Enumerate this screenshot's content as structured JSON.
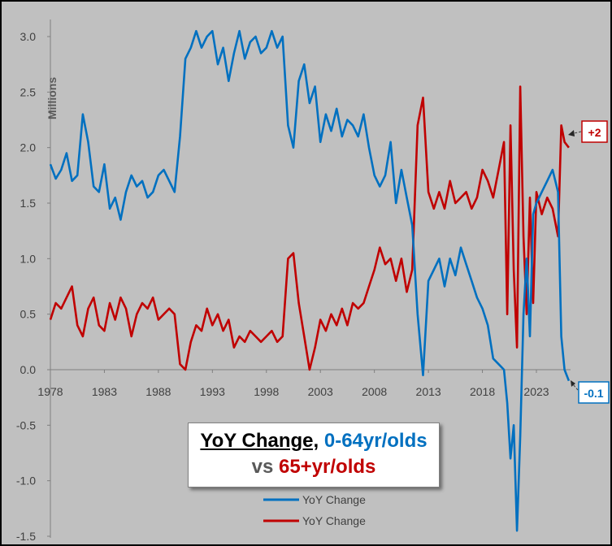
{
  "chart_data": {
    "type": "line",
    "title_parts": {
      "line1_a": "YoY Change,",
      "line1_b": " 0-64yr/olds",
      "line2_a": "vs ",
      "line2_b": "65+yr/olds"
    },
    "ylabel": "Millions",
    "ylim": [
      -1.5,
      3.2
    ],
    "xlim": [
      1978,
      2026.5
    ],
    "yticks": [
      "-1.5",
      "-1.0",
      "-0.5",
      "0.0",
      "0.5",
      "1.0",
      "1.5",
      "2.0",
      "2.5",
      "3.0"
    ],
    "ytick_values": [
      -1.5,
      -1.0,
      -0.5,
      0.0,
      0.5,
      1.0,
      1.5,
      2.0,
      2.5,
      3.0
    ],
    "xticks": [
      "1978",
      "1983",
      "1988",
      "1993",
      "1998",
      "2003",
      "2008",
      "2013",
      "2018",
      "2023"
    ],
    "xtick_values": [
      1978,
      1983,
      1988,
      1993,
      1998,
      2003,
      2008,
      2013,
      2018,
      2023
    ],
    "grid": false,
    "legend_position": "bottom-center",
    "series": [
      {
        "name": "YoY Change",
        "color": "#0070c0",
        "x": [
          1978.0,
          1978.5,
          1979.0,
          1979.5,
          1980.0,
          1980.5,
          1981.0,
          1981.5,
          1982.0,
          1982.5,
          1983.0,
          1983.5,
          1984.0,
          1984.5,
          1985.0,
          1985.5,
          1986.0,
          1986.5,
          1987.0,
          1987.5,
          1988.0,
          1988.5,
          1989.0,
          1989.5,
          1990.0,
          1990.5,
          1991.0,
          1991.5,
          1992.0,
          1992.5,
          1993.0,
          1993.5,
          1994.0,
          1994.5,
          1995.0,
          1995.5,
          1996.0,
          1996.5,
          1997.0,
          1997.5,
          1998.0,
          1998.5,
          1999.0,
          1999.5,
          2000.0,
          2000.5,
          2001.0,
          2001.5,
          2002.0,
          2002.5,
          2003.0,
          2003.5,
          2004.0,
          2004.5,
          2005.0,
          2005.5,
          2006.0,
          2006.5,
          2007.0,
          2007.5,
          2008.0,
          2008.5,
          2009.0,
          2009.5,
          2010.0,
          2010.5,
          2011.0,
          2011.5,
          2012.0,
          2012.5,
          2013.0,
          2013.5,
          2014.0,
          2014.5,
          2015.0,
          2015.5,
          2016.0,
          2016.5,
          2017.0,
          2017.5,
          2018.0,
          2018.5,
          2019.0,
          2019.5,
          2020.0,
          2020.3,
          2020.6,
          2020.9,
          2021.2,
          2021.5,
          2021.8,
          2022.1,
          2022.4,
          2022.7,
          2023.0,
          2023.5,
          2024.0,
          2024.5,
          2025.0,
          2025.3,
          2025.6,
          2026.0
        ],
        "values": [
          1.85,
          1.72,
          1.8,
          1.95,
          1.7,
          1.75,
          2.3,
          2.05,
          1.65,
          1.6,
          1.85,
          1.45,
          1.55,
          1.35,
          1.6,
          1.75,
          1.65,
          1.7,
          1.55,
          1.6,
          1.75,
          1.8,
          1.7,
          1.6,
          2.1,
          2.8,
          2.9,
          3.05,
          2.9,
          3.0,
          3.05,
          2.75,
          2.9,
          2.6,
          2.85,
          3.05,
          2.8,
          2.95,
          3.0,
          2.85,
          2.9,
          3.05,
          2.9,
          3.0,
          2.2,
          2.0,
          2.6,
          2.75,
          2.4,
          2.55,
          2.05,
          2.3,
          2.15,
          2.35,
          2.1,
          2.25,
          2.2,
          2.1,
          2.3,
          2.0,
          1.75,
          1.65,
          1.75,
          2.05,
          1.5,
          1.8,
          1.55,
          1.3,
          0.5,
          -0.05,
          0.8,
          0.9,
          1.0,
          0.75,
          1.0,
          0.85,
          1.1,
          0.95,
          0.8,
          0.65,
          0.55,
          0.4,
          0.1,
          0.05,
          0.0,
          -0.3,
          -0.8,
          -0.5,
          -1.45,
          -0.6,
          0.5,
          1.0,
          0.3,
          1.4,
          1.5,
          1.6,
          1.7,
          1.8,
          1.6,
          0.3,
          0.0,
          -0.1
        ]
      },
      {
        "name": "YoY Change",
        "color": "#c00000",
        "x": [
          1978.0,
          1978.5,
          1979.0,
          1979.5,
          1980.0,
          1980.5,
          1981.0,
          1981.5,
          1982.0,
          1982.5,
          1983.0,
          1983.5,
          1984.0,
          1984.5,
          1985.0,
          1985.5,
          1986.0,
          1986.5,
          1987.0,
          1987.5,
          1988.0,
          1988.5,
          1989.0,
          1989.5,
          1990.0,
          1990.5,
          1991.0,
          1991.5,
          1992.0,
          1992.5,
          1993.0,
          1993.5,
          1994.0,
          1994.5,
          1995.0,
          1995.5,
          1996.0,
          1996.5,
          1997.0,
          1997.5,
          1998.0,
          1998.5,
          1999.0,
          1999.5,
          2000.0,
          2000.5,
          2001.0,
          2001.5,
          2002.0,
          2002.5,
          2003.0,
          2003.5,
          2004.0,
          2004.5,
          2005.0,
          2005.5,
          2006.0,
          2006.5,
          2007.0,
          2007.5,
          2008.0,
          2008.5,
          2009.0,
          2009.5,
          2010.0,
          2010.5,
          2011.0,
          2011.5,
          2012.0,
          2012.5,
          2013.0,
          2013.5,
          2014.0,
          2014.5,
          2015.0,
          2015.5,
          2016.0,
          2016.5,
          2017.0,
          2017.5,
          2018.0,
          2018.5,
          2019.0,
          2019.5,
          2020.0,
          2020.3,
          2020.6,
          2020.9,
          2021.2,
          2021.5,
          2021.8,
          2022.1,
          2022.4,
          2022.7,
          2023.0,
          2023.5,
          2024.0,
          2024.5,
          2025.0,
          2025.3,
          2025.6,
          2026.0
        ],
        "values": [
          0.45,
          0.6,
          0.55,
          0.65,
          0.75,
          0.4,
          0.3,
          0.55,
          0.65,
          0.4,
          0.35,
          0.6,
          0.45,
          0.65,
          0.55,
          0.3,
          0.5,
          0.6,
          0.55,
          0.65,
          0.45,
          0.5,
          0.55,
          0.5,
          0.05,
          0.0,
          0.25,
          0.4,
          0.35,
          0.55,
          0.4,
          0.5,
          0.35,
          0.45,
          0.2,
          0.3,
          0.25,
          0.35,
          0.3,
          0.25,
          0.3,
          0.35,
          0.25,
          0.3,
          1.0,
          1.05,
          0.6,
          0.3,
          0.0,
          0.2,
          0.45,
          0.35,
          0.5,
          0.4,
          0.55,
          0.4,
          0.6,
          0.55,
          0.6,
          0.75,
          0.9,
          1.1,
          0.95,
          1.0,
          0.8,
          1.0,
          0.7,
          0.9,
          2.2,
          2.45,
          1.6,
          1.45,
          1.6,
          1.45,
          1.7,
          1.5,
          1.55,
          1.6,
          1.45,
          1.55,
          1.8,
          1.7,
          1.55,
          1.8,
          2.05,
          0.5,
          2.2,
          0.9,
          0.2,
          2.55,
          1.2,
          0.5,
          1.55,
          0.6,
          1.6,
          1.4,
          1.55,
          1.45,
          1.2,
          2.2,
          2.05,
          2.0
        ]
      }
    ],
    "callouts": [
      {
        "text": "+2",
        "color": "#c00000"
      },
      {
        "text": "-0.1",
        "color": "#0070c0"
      }
    ]
  }
}
